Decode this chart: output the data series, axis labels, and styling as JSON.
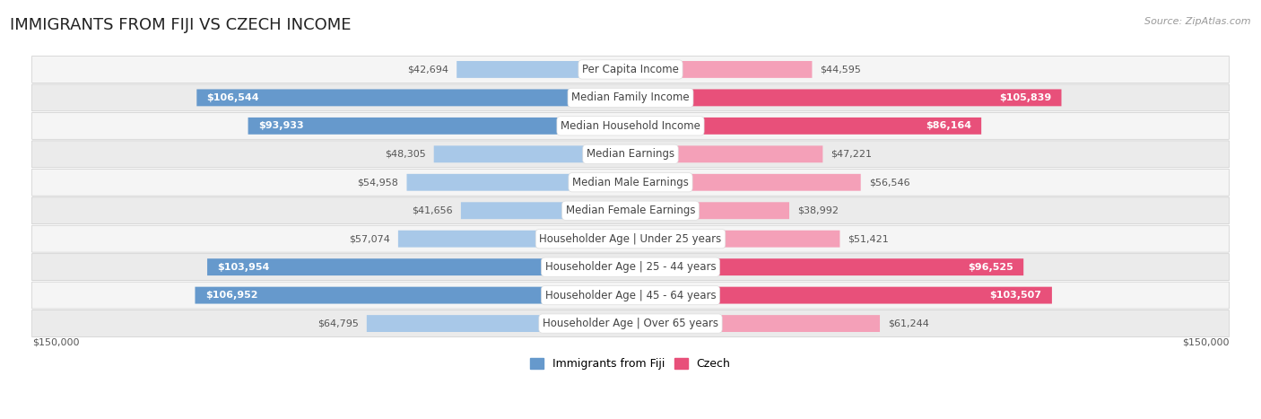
{
  "title": "IMMIGRANTS FROM FIJI VS CZECH INCOME",
  "source": "Source: ZipAtlas.com",
  "categories": [
    "Per Capita Income",
    "Median Family Income",
    "Median Household Income",
    "Median Earnings",
    "Median Male Earnings",
    "Median Female Earnings",
    "Householder Age | Under 25 years",
    "Householder Age | 25 - 44 years",
    "Householder Age | 45 - 64 years",
    "Householder Age | Over 65 years"
  ],
  "fiji_values": [
    42694,
    106544,
    93933,
    48305,
    54958,
    41656,
    57074,
    103954,
    106952,
    64795
  ],
  "czech_values": [
    44595,
    105839,
    86164,
    47221,
    56546,
    38992,
    51421,
    96525,
    103507,
    61244
  ],
  "fiji_color_light": "#a8c8e8",
  "fiji_color_dark": "#6699cc",
  "czech_color_light": "#f4a0b8",
  "czech_color_dark": "#e8507a",
  "fiji_label": "Immigrants from Fiji",
  "czech_label": "Czech",
  "max_value": 150000,
  "x_axis_label_left": "$150,000",
  "x_axis_label_right": "$150,000",
  "background_color": "#ffffff",
  "row_bg_even": "#f5f5f5",
  "row_bg_odd": "#ebebeb",
  "title_fontsize": 13,
  "source_fontsize": 8,
  "label_fontsize": 9,
  "value_fontsize": 8,
  "category_fontsize": 8.5,
  "fiji_threshold": 65000,
  "czech_threshold": 65000
}
